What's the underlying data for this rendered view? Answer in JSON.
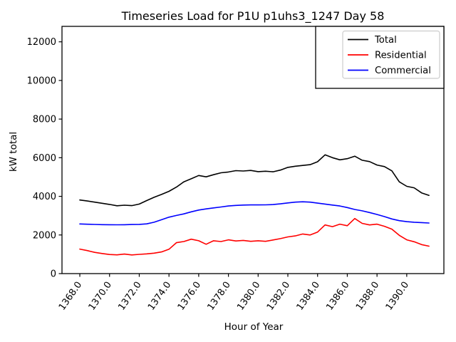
{
  "chart_data": {
    "type": "line",
    "title": "Timeseries Load for P1U p1uhs3_1247  Day 58",
    "xlabel": "Hour of Year",
    "ylabel": "kW total",
    "xlim": [
      1366.8,
      1392.5
    ],
    "ylim": [
      0,
      12800
    ],
    "grid": false,
    "xticks": [
      1368,
      1370,
      1372,
      1374,
      1376,
      1378,
      1380,
      1382,
      1384,
      1386,
      1388,
      1390
    ],
    "xtick_labels": [
      "1368.0",
      "1370.0",
      "1372.0",
      "1374.0",
      "1376.0",
      "1378.0",
      "1380.0",
      "1382.0",
      "1384.0",
      "1386.0",
      "1388.0",
      "1390.0"
    ],
    "xtick_rotation_deg": 55,
    "yticks": [
      0,
      2000,
      4000,
      6000,
      8000,
      10000,
      12000
    ],
    "ytick_labels": [
      "0",
      "2000",
      "4000",
      "6000",
      "8000",
      "10000",
      "12000"
    ],
    "x": [
      1368.0,
      1368.5,
      1369.0,
      1369.5,
      1370.0,
      1370.5,
      1371.0,
      1371.5,
      1372.0,
      1372.5,
      1373.0,
      1373.5,
      1374.0,
      1374.5,
      1375.0,
      1375.5,
      1376.0,
      1376.5,
      1377.0,
      1377.5,
      1378.0,
      1378.5,
      1379.0,
      1379.5,
      1380.0,
      1380.5,
      1381.0,
      1381.5,
      1382.0,
      1382.5,
      1383.0,
      1383.5,
      1384.0,
      1384.5,
      1385.0,
      1385.5,
      1386.0,
      1386.5,
      1387.0,
      1387.5,
      1388.0,
      1388.5,
      1389.0,
      1389.5,
      1390.0,
      1390.5,
      1391.0,
      1391.5
    ],
    "series": [
      {
        "name": "Total",
        "color": "#000000",
        "values": [
          3810,
          3760,
          3700,
          3640,
          3580,
          3510,
          3540,
          3520,
          3600,
          3780,
          3950,
          4100,
          4260,
          4480,
          4750,
          4910,
          5080,
          5010,
          5120,
          5220,
          5260,
          5330,
          5310,
          5340,
          5280,
          5300,
          5270,
          5360,
          5500,
          5560,
          5600,
          5640,
          5790,
          6150,
          6000,
          5890,
          5950,
          6080,
          5870,
          5800,
          5620,
          5540,
          5320,
          4750,
          4520,
          4440,
          4180,
          4050
        ]
      },
      {
        "name": "Residential",
        "color": "#ff0000",
        "values": [
          1270,
          1190,
          1100,
          1040,
          990,
          970,
          1010,
          965,
          995,
          1020,
          1060,
          1120,
          1260,
          1600,
          1660,
          1780,
          1700,
          1520,
          1700,
          1660,
          1750,
          1690,
          1720,
          1670,
          1700,
          1670,
          1740,
          1810,
          1900,
          1950,
          2050,
          2000,
          2150,
          2520,
          2430,
          2560,
          2480,
          2850,
          2600,
          2520,
          2560,
          2450,
          2300,
          1980,
          1750,
          1650,
          1500,
          1420
        ]
      },
      {
        "name": "Commercial",
        "color": "#0000ff",
        "values": [
          2570,
          2555,
          2545,
          2535,
          2530,
          2528,
          2532,
          2540,
          2550,
          2575,
          2660,
          2790,
          2920,
          3010,
          3090,
          3200,
          3290,
          3350,
          3400,
          3450,
          3500,
          3530,
          3550,
          3555,
          3555,
          3560,
          3575,
          3610,
          3660,
          3700,
          3720,
          3700,
          3650,
          3600,
          3550,
          3500,
          3420,
          3320,
          3250,
          3160,
          3060,
          2950,
          2830,
          2740,
          2690,
          2660,
          2640,
          2620
        ]
      }
    ],
    "legend": {
      "position": "upper right",
      "entries": [
        "Total",
        "Residential",
        "Commercial"
      ],
      "inner_border_color": "#cccccc",
      "outer_border_color": "#000000",
      "background": "#ffffff"
    },
    "axis_color": "#000000",
    "background_color": "#ffffff"
  }
}
